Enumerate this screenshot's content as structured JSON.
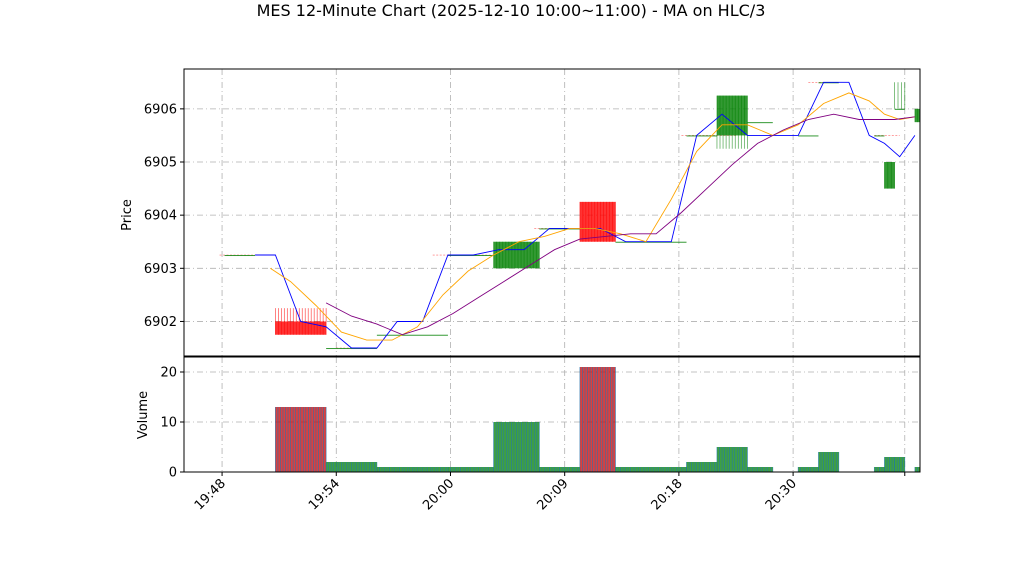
{
  "chart_data": {
    "type": "candlestick",
    "title": "MES 12-Minute Chart (2025-12-10 10:00~11:00) - MA on HLC/3",
    "price_axis": {
      "ylabel": "Price",
      "ylim": [
        6901.35,
        6906.75
      ],
      "ticks": [
        6902,
        6903,
        6904,
        6905,
        6906
      ]
    },
    "volume_axis": {
      "ylabel": "Volume",
      "ylim": [
        0,
        23
      ],
      "ticks": [
        0,
        10,
        20
      ]
    },
    "x_axis": {
      "range": [
        -5,
        140
      ],
      "ticks": [
        {
          "pos": 2.5,
          "label": "19:48"
        },
        {
          "pos": 25,
          "label": "19:54"
        },
        {
          "pos": 47.5,
          "label": "20:00"
        },
        {
          "pos": 70,
          "label": "20:09"
        },
        {
          "pos": 92.5,
          "label": "20:18"
        },
        {
          "pos": 115,
          "label": "20:30"
        }
      ],
      "end_tick": 137
    },
    "grid": true,
    "colors": {
      "up": "#008000",
      "down": "#ff0000",
      "volume_edge": "#1f77b4",
      "line_close": "#0000ff",
      "line_ma1": "#ffa500",
      "line_ma2": "#800080",
      "grid": "#b0b0b0"
    },
    "candles": [
      {
        "x0": 3,
        "x1": 9,
        "open": 6903.25,
        "high": 6903.25,
        "low": 6903.25,
        "close": 6903.25,
        "volume": 0
      },
      {
        "x0": 13,
        "x1": 23,
        "open": 6902.0,
        "high": 6902.25,
        "low": 6901.75,
        "close": 6901.75,
        "volume": 13
      },
      {
        "x0": 23,
        "x1": 33,
        "open": 6901.5,
        "high": 6901.5,
        "low": 6901.5,
        "close": 6901.5,
        "volume": 2
      },
      {
        "x0": 33,
        "x1": 47,
        "open": 6901.75,
        "high": 6901.75,
        "low": 6901.75,
        "close": 6901.75,
        "volume": 1
      },
      {
        "x0": 47,
        "x1": 56,
        "open": 6903.25,
        "high": 6903.25,
        "low": 6903.25,
        "close": 6903.25,
        "volume": 1
      },
      {
        "x0": 56,
        "x1": 65,
        "open": 6903.0,
        "high": 6903.5,
        "low": 6903.0,
        "close": 6903.5,
        "volume": 10
      },
      {
        "x0": 65,
        "x1": 73,
        "open": 6903.75,
        "high": 6903.75,
        "low": 6903.75,
        "close": 6903.75,
        "volume": 1
      },
      {
        "x0": 73,
        "x1": 80,
        "open": 6904.25,
        "high": 6904.25,
        "low": 6903.5,
        "close": 6903.5,
        "volume": 21
      },
      {
        "x0": 80,
        "x1": 94,
        "open": 6903.5,
        "high": 6903.5,
        "low": 6903.5,
        "close": 6903.5,
        "volume": 1
      },
      {
        "x0": 94,
        "x1": 100,
        "open": 6905.5,
        "high": 6905.5,
        "low": 6905.5,
        "close": 6905.5,
        "volume": 2
      },
      {
        "x0": 100,
        "x1": 106,
        "open": 6905.5,
        "high": 6906.25,
        "low": 6905.25,
        "close": 6906.25,
        "volume": 5
      },
      {
        "x0": 106,
        "x1": 111,
        "open": 6905.75,
        "high": 6905.75,
        "low": 6905.75,
        "close": 6905.75,
        "volume": 1
      },
      {
        "x0": 116,
        "x1": 120,
        "open": 6905.5,
        "high": 6905.5,
        "low": 6905.5,
        "close": 6905.5,
        "volume": 1
      },
      {
        "x0": 120,
        "x1": 124,
        "open": 6906.5,
        "high": 6906.5,
        "low": 6906.5,
        "close": 6906.5,
        "volume": 4
      },
      {
        "x0": 131,
        "x1": 133,
        "open": 6905.5,
        "high": 6905.5,
        "low": 6905.5,
        "close": 6905.5,
        "volume": 1
      },
      {
        "x0": 133,
        "x1": 135,
        "open": 6904.5,
        "high": 6905.0,
        "low": 6904.5,
        "close": 6905.0,
        "volume": 3
      },
      {
        "x0": 135,
        "x1": 137,
        "open": 6906.0,
        "high": 6906.5,
        "low": 6906.0,
        "close": 6906.0,
        "volume": 3
      },
      {
        "x0": 139,
        "x1": 140,
        "open": 6905.75,
        "high": 6906.0,
        "low": 6905.75,
        "close": 6906.0,
        "volume": 1
      }
    ],
    "lines": [
      {
        "name": "close",
        "color": "#0000ff",
        "x": [
          9,
          13,
          18,
          23,
          28,
          33,
          37,
          42,
          47,
          52,
          57,
          62,
          67,
          72,
          77,
          82,
          86,
          91,
          96,
          101,
          106,
          111,
          116,
          121,
          126,
          130,
          133,
          136,
          139
        ],
        "y": [
          6903.25,
          6903.25,
          6902.0,
          6901.9,
          6901.5,
          6901.5,
          6902.0,
          6902.0,
          6903.25,
          6903.25,
          6903.35,
          6903.35,
          6903.75,
          6903.75,
          6903.75,
          6903.5,
          6903.5,
          6903.5,
          6905.5,
          6905.9,
          6905.5,
          6905.5,
          6905.5,
          6906.5,
          6906.5,
          6905.5,
          6905.35,
          6905.1,
          6905.5
        ]
      },
      {
        "name": "ma1",
        "color": "#ffa500",
        "x": [
          12,
          16,
          21,
          26,
          31,
          36,
          41,
          46,
          51,
          56,
          61,
          66,
          71,
          76,
          81,
          86,
          91,
          96,
          101,
          106,
          111,
          116,
          121,
          126,
          130,
          133,
          136,
          139
        ],
        "y": [
          6903.0,
          6902.75,
          6902.3,
          6901.8,
          6901.65,
          6901.65,
          6901.9,
          6902.5,
          6902.95,
          6903.25,
          6903.5,
          6903.6,
          6903.75,
          6903.75,
          6903.65,
          6903.5,
          6904.3,
          6905.2,
          6905.7,
          6905.7,
          6905.5,
          6905.7,
          6906.1,
          6906.3,
          6906.15,
          6905.9,
          6905.8,
          6905.85
        ]
      },
      {
        "name": "ma2",
        "color": "#800080",
        "x": [
          23,
          28,
          33,
          38,
          43,
          48,
          53,
          58,
          63,
          68,
          73,
          78,
          83,
          88,
          93,
          98,
          103,
          108,
          113,
          118,
          123,
          128,
          131,
          135,
          139
        ],
        "y": [
          6902.35,
          6902.1,
          6901.95,
          6901.75,
          6901.9,
          6902.15,
          6902.45,
          6902.75,
          6903.05,
          6903.35,
          6903.55,
          6903.6,
          6903.65,
          6903.65,
          6904.05,
          6904.5,
          6904.95,
          6905.35,
          6905.6,
          6905.8,
          6905.9,
          6905.8,
          6905.8,
          6905.8,
          6905.85
        ]
      }
    ],
    "price_refs": [
      {
        "x0": 2,
        "x1": 11,
        "y": 6903.25,
        "color": "#ff0000"
      },
      {
        "x0": 25,
        "x1": 32,
        "y": 6901.5,
        "color": "#ff0000"
      },
      {
        "x0": 44,
        "x1": 56,
        "y": 6903.25,
        "color": "#ff0000"
      },
      {
        "x0": 64,
        "x1": 74,
        "y": 6903.75,
        "color": "#ff0000"
      },
      {
        "x0": 93,
        "x1": 104,
        "y": 6905.5,
        "color": "#ff0000"
      },
      {
        "x0": 118,
        "x1": 124,
        "y": 6906.5,
        "color": "#ff0000"
      },
      {
        "x0": 131,
        "x1": 136,
        "y": 6905.5,
        "color": "#ff0000"
      }
    ]
  }
}
